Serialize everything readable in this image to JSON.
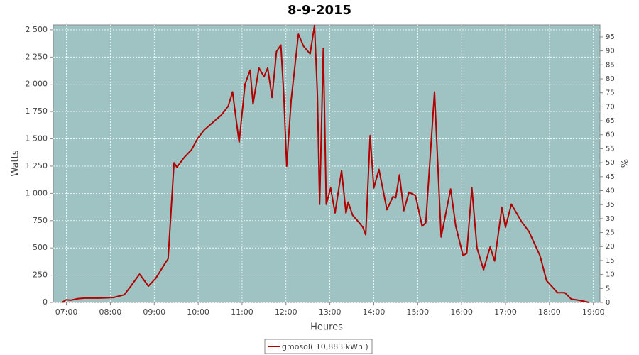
{
  "chart_data": {
    "type": "line",
    "title": "8-9-2015",
    "x_label": "Heures",
    "y_label": "Watts",
    "y2_label": "%",
    "xlim": [
      "06:42",
      "19:09"
    ],
    "xticks": [
      "07:00",
      "08:00",
      "09:00",
      "10:00",
      "11:00",
      "12:00",
      "13:00",
      "14:00",
      "15:00",
      "16:00",
      "17:00",
      "18:00",
      "19:00"
    ],
    "ylim": [
      0,
      2545
    ],
    "yticks": [
      0,
      250,
      500,
      750,
      {
        "value": 1000,
        "label": "1 000"
      },
      {
        "value": 1250,
        "label": "1 250"
      },
      {
        "value": 1500,
        "label": "1 500"
      },
      {
        "value": 1750,
        "label": "1 750"
      },
      {
        "value": 2000,
        "label": "2 000"
      },
      {
        "value": 2250,
        "label": "2 250"
      },
      {
        "value": 2500,
        "label": "2 500"
      }
    ],
    "y2lim": [
      0,
      99.3
    ],
    "y2ticks": [
      0,
      5,
      10,
      15,
      20,
      25,
      30,
      35,
      40,
      45,
      50,
      55,
      60,
      65,
      70,
      75,
      80,
      85,
      90,
      95
    ],
    "grid": true,
    "legend": "bottom",
    "x": [
      "06:54",
      "07:00",
      "07:06",
      "07:16",
      "07:25",
      "07:45",
      "08:04",
      "08:19",
      "08:28",
      "08:40",
      "08:52",
      "09:02",
      "09:14",
      "09:19",
      "09:27",
      "09:31",
      "09:41",
      "09:51",
      "09:59",
      "10:08",
      "10:20",
      "10:32",
      "10:41",
      "10:47",
      "10:56",
      "11:04",
      "11:11",
      "11:15",
      "11:23",
      "11:30",
      "11:35",
      "11:41",
      "11:47",
      "11:53",
      "11:57",
      "12:01",
      "12:07",
      "12:17",
      "12:24",
      "12:33",
      "12:39",
      "12:43",
      "12:46",
      "12:51",
      "12:55",
      "13:01",
      "13:07",
      "13:16",
      "13:22",
      "13:25",
      "13:31",
      "13:39",
      "13:45",
      "13:49",
      "13:55",
      "14:00",
      "14:07",
      "14:18",
      "14:26",
      "14:30",
      "14:35",
      "14:41",
      "14:48",
      "14:57",
      "15:06",
      "15:11",
      "15:23",
      "15:32",
      "15:45",
      "15:52",
      "16:02",
      "16:07",
      "16:14",
      "16:21",
      "16:30",
      "16:39",
      "16:45",
      "16:55",
      "17:00",
      "17:08",
      "17:22",
      "17:32",
      "17:47",
      "17:56",
      "18:11",
      "18:21",
      "18:30",
      "18:40",
      "18:54"
    ],
    "series": [
      {
        "name": "gmosol( 10,883 kWh )",
        "color": "#b00000",
        "values": [
          0,
          25,
          20,
          35,
          40,
          40,
          45,
          70,
          150,
          260,
          150,
          220,
          350,
          400,
          1280,
          1240,
          1330,
          1400,
          1500,
          1580,
          1650,
          1720,
          1800,
          1930,
          1470,
          2000,
          2130,
          1820,
          2150,
          2070,
          2150,
          1880,
          2300,
          2360,
          1900,
          1250,
          1850,
          2460,
          2350,
          2280,
          2540,
          1900,
          900,
          2330,
          900,
          1050,
          820,
          1210,
          820,
          920,
          800,
          740,
          690,
          620,
          1530,
          1050,
          1220,
          850,
          970,
          960,
          1170,
          840,
          1010,
          980,
          700,
          730,
          1930,
          600,
          1040,
          700,
          430,
          450,
          1050,
          500,
          300,
          510,
          380,
          870,
          690,
          900,
          740,
          650,
          430,
          200,
          90,
          90,
          30,
          20,
          0
        ]
      }
    ]
  }
}
